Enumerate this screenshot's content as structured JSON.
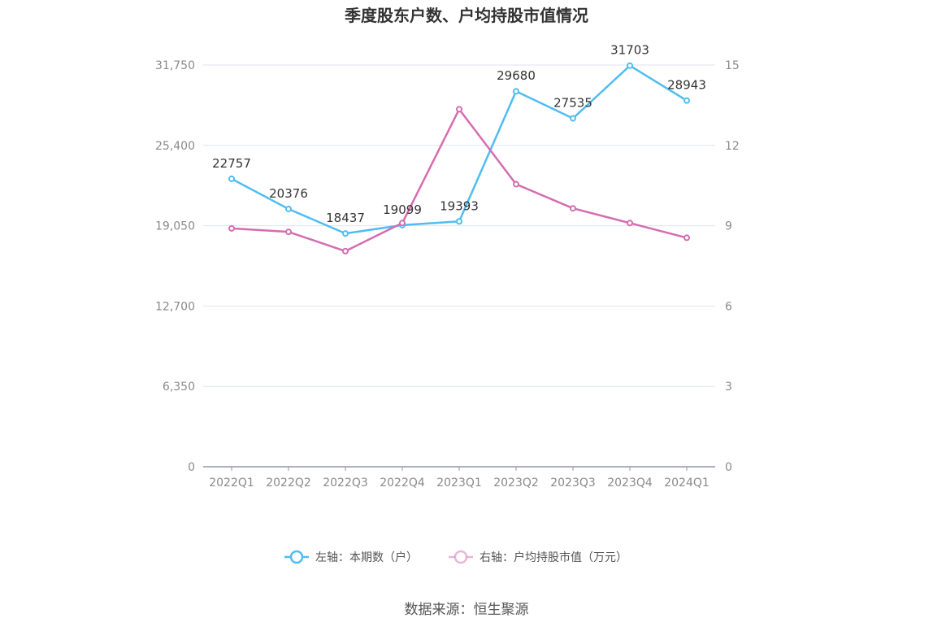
{
  "chart_data": {
    "type": "line",
    "title": "季度股东户数、户均持股市值情况",
    "categories": [
      "2022Q1",
      "2022Q2",
      "2022Q3",
      "2022Q4",
      "2023Q1",
      "2023Q2",
      "2023Q3",
      "2023Q4",
      "2024Q1"
    ],
    "series": [
      {
        "name": "左轴：本期数（户）",
        "axis": "left",
        "color": "#4fbdf2",
        "values": [
          22757,
          20376,
          18437,
          19099,
          19393,
          29680,
          27535,
          31703,
          28943
        ],
        "data_labels": [
          "22757",
          "20376",
          "18437",
          "19099",
          "19393",
          "29680",
          "27535",
          "31703",
          "28943"
        ]
      },
      {
        "name": "右轴：户均持股市值（万元）",
        "axis": "right",
        "color": "#d46db0",
        "values": [
          8.9,
          8.77,
          8.05,
          9.1,
          13.35,
          10.55,
          9.65,
          9.1,
          8.55
        ]
      }
    ],
    "y_left": {
      "ylim": [
        0,
        31750
      ],
      "ticks": [
        "0",
        "6,350",
        "12,700",
        "19,050",
        "25,400",
        "31,750"
      ]
    },
    "y_right": {
      "ylim": [
        0,
        15
      ],
      "ticks": [
        "0",
        "3",
        "6",
        "9",
        "12",
        "15"
      ]
    },
    "grid": true,
    "legend_position": "bottom"
  },
  "source": "数据来源：恒生聚源"
}
